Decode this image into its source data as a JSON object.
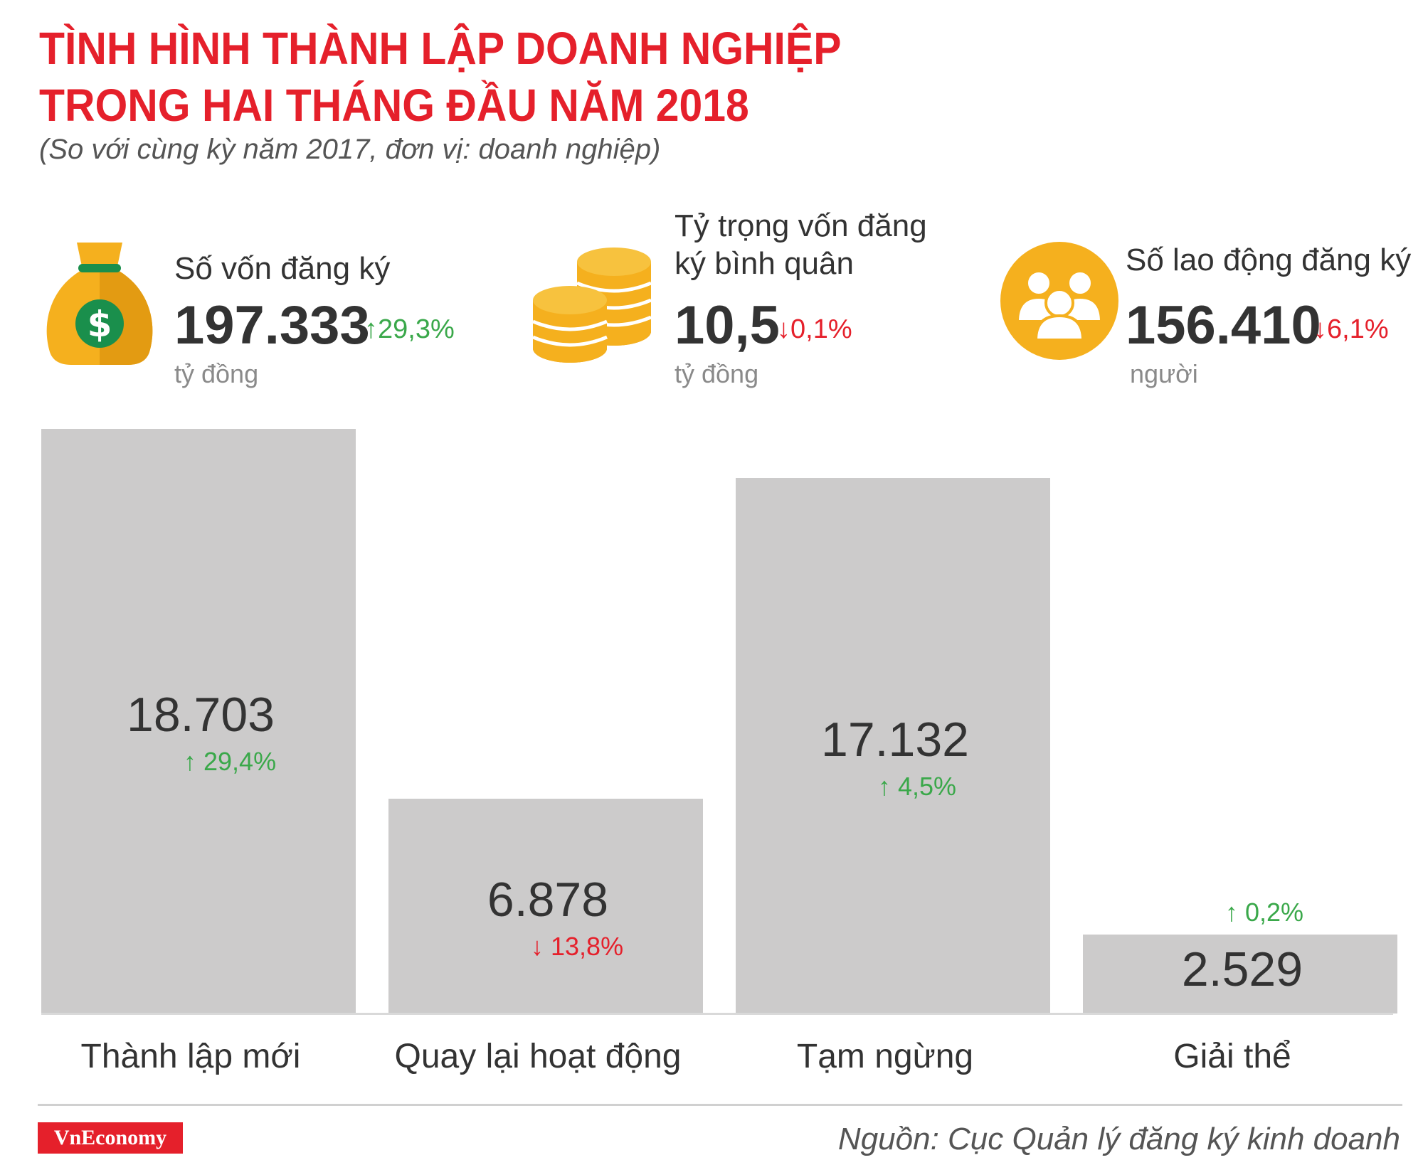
{
  "title_line1": "TÌNH HÌNH THÀNH LẬP DOANH NGHIỆP",
  "title_line2": "TRONG HAI THÁNG ĐẦU NĂM 2018",
  "subtitle": "(So với cùng kỳ năm 2017, đơn vị: doanh nghiệp)",
  "stats": [
    {
      "label_lines": [
        "Số vốn đăng ký"
      ],
      "value": "197.333",
      "change": "29,3%",
      "direction": "up",
      "unit": "tỷ đồng",
      "icon": "money-bag-icon"
    },
    {
      "label_lines": [
        "Tỷ trọng vốn đăng",
        "ký bình quân"
      ],
      "value": "10,5",
      "change": "0,1%",
      "direction": "down",
      "unit": "tỷ đồng",
      "icon": "coins-icon"
    },
    {
      "label_lines": [
        "Số lao động đăng ký"
      ],
      "value": "156.410",
      "change": "6,1%",
      "direction": "down",
      "unit": "người",
      "icon": "people-icon"
    }
  ],
  "colors": {
    "title": "#e5202b",
    "up": "#3aa84a",
    "down": "#e5202b",
    "bar": "#cccbcb",
    "icon": "#f5b01e"
  },
  "chart_data": {
    "type": "bar",
    "categories": [
      "Thành lập mới",
      "Quay lại hoạt động",
      "Tạm ngừng",
      "Giải thể"
    ],
    "values": [
      18703,
      6878,
      17132,
      2529
    ],
    "value_labels": [
      "18.703",
      "6.878",
      "17.132",
      "2.529"
    ],
    "changes": [
      "29,4%",
      "13,8%",
      "4,5%",
      "0,2%"
    ],
    "change_directions": [
      "up",
      "down",
      "up",
      "up"
    ],
    "ylim": [
      0,
      18703
    ],
    "grid": false,
    "legend": "none"
  },
  "source": "Nguồn: Cục Quản lý đăng ký kinh doanh",
  "logo_text": "VnEconomy"
}
